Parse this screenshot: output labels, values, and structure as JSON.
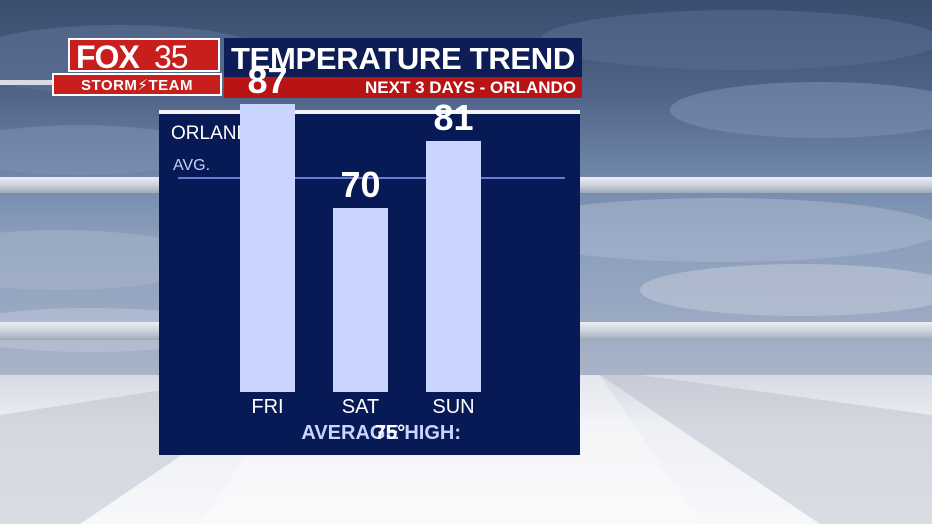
{
  "logo": {
    "brand": "FOX",
    "channel": "35",
    "team": "STORM",
    "team2": "TEAM"
  },
  "header": {
    "title": "TEMPERATURE TREND",
    "subtitle": "NEXT 3 DAYS - ORLANDO"
  },
  "panel": {
    "city": "ORLANDO",
    "avg_label": "AVG.",
    "average_high_label": "AVERAGE HIGH:",
    "average_high_value": "75°"
  },
  "chart_data": {
    "type": "bar",
    "title": "TEMPERATURE TREND",
    "subtitle": "NEXT 3 DAYS - ORLANDO",
    "categories": [
      "FRI",
      "SAT",
      "SUN"
    ],
    "values": [
      87,
      70,
      81
    ],
    "reference_line": {
      "label": "AVG.",
      "value": 75
    },
    "ylim": [
      40,
      95
    ],
    "bar_color": "#c9d5ff",
    "background_color": "#081a55"
  },
  "colors": {
    "panel": "#081a55",
    "accent_red": "#b81416",
    "title_navy": "#0f1d57",
    "avg_line": "#6c78d8"
  }
}
